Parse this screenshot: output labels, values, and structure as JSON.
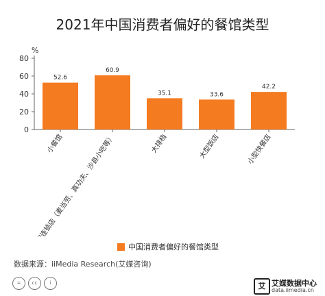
{
  "title": "2021年中国消费者偏好的餐馆类型",
  "source": "数据来源：iiMedia Research(艾媒咨询)",
  "licence_icons": [
    "=",
    "cc",
    "i"
  ],
  "brand": {
    "logo_text": "艾",
    "name": "艾媒数据中心",
    "url": "data.iimedia.cn"
  },
  "colors": {
    "bar": "#F47B20",
    "axis": "#666666",
    "text": "#333333"
  },
  "chart_data": {
    "type": "bar",
    "title": "2021年中国消费者偏好的餐馆类型",
    "categories": [
      "小餐馆",
      "品牌连锁店（麦当劳、真功夫、沙县小吃等）",
      "大排档",
      "大型饭店",
      "小型快餐店"
    ],
    "series": [
      {
        "name": "中国消费者偏好的餐馆类型",
        "values": [
          52.6,
          60.9,
          35.1,
          33.6,
          42.2
        ]
      }
    ],
    "ylabel": "%",
    "xlabel": "",
    "ylim": [
      0,
      80
    ],
    "yticks": [
      0,
      20,
      40,
      60,
      80
    ],
    "grid": false,
    "legend": "bottom"
  }
}
